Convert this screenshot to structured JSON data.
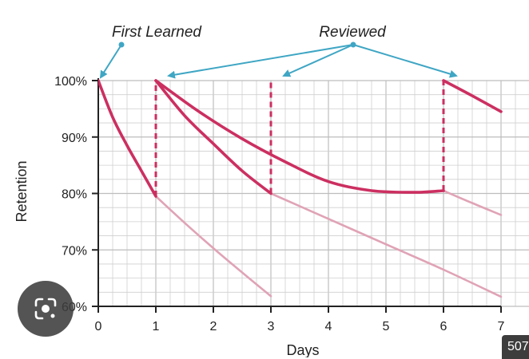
{
  "chart_data": {
    "type": "line",
    "xlabel": "Days",
    "ylabel": "Retention",
    "xlim": [
      0,
      7
    ],
    "ylim": [
      60,
      100
    ],
    "xticks": [
      "0",
      "1",
      "2",
      "3",
      "4",
      "5",
      "6",
      "7"
    ],
    "yticks": [
      "60%",
      "70%",
      "80%",
      "90%",
      "100%"
    ],
    "grid": true,
    "annotations": {
      "first": "First Learned",
      "reviewed": "Reviewed"
    },
    "review_days": [
      1,
      3,
      6
    ],
    "series": [
      {
        "role": "active",
        "x": [
          0,
          0.25,
          0.5,
          0.75,
          1
        ],
        "y": [
          100,
          93.5,
          88.5,
          84.0,
          79.5
        ]
      },
      {
        "role": "active",
        "x": [
          1,
          1.5,
          2,
          2.5,
          3
        ],
        "y": [
          100,
          93.8,
          88.8,
          84.0,
          80.0
        ]
      },
      {
        "role": "active",
        "x": [
          1,
          1.75,
          2.5,
          3.25,
          4,
          4.75,
          5.5,
          6
        ],
        "y": [
          100,
          94.5,
          89.7,
          85.6,
          82.1,
          80.5,
          80.2,
          80.5
        ]
      },
      {
        "role": "active",
        "x": [
          6,
          6.5,
          7
        ],
        "y": [
          100,
          97.3,
          94.5
        ]
      },
      {
        "role": "faded",
        "x": [
          1,
          1.5,
          2,
          2.5,
          3
        ],
        "y": [
          79.5,
          74.8,
          70.3,
          66.0,
          61.8
        ]
      },
      {
        "role": "faded",
        "x": [
          3,
          4,
          5,
          6,
          7
        ],
        "y": [
          80.0,
          75.5,
          71.0,
          66.5,
          61.7
        ]
      },
      {
        "role": "faded",
        "x": [
          6,
          6.5,
          7
        ],
        "y": [
          80.5,
          78.3,
          76.2
        ]
      }
    ],
    "colors": {
      "active": "#cc2f61",
      "faded": "#e0a3b6",
      "arrow": "#3fa6c4",
      "grid": "#cfcfcf",
      "axis": "#222222"
    }
  },
  "ui": {
    "lens_icon": "camera-lens-icon",
    "badge_text": "507"
  }
}
